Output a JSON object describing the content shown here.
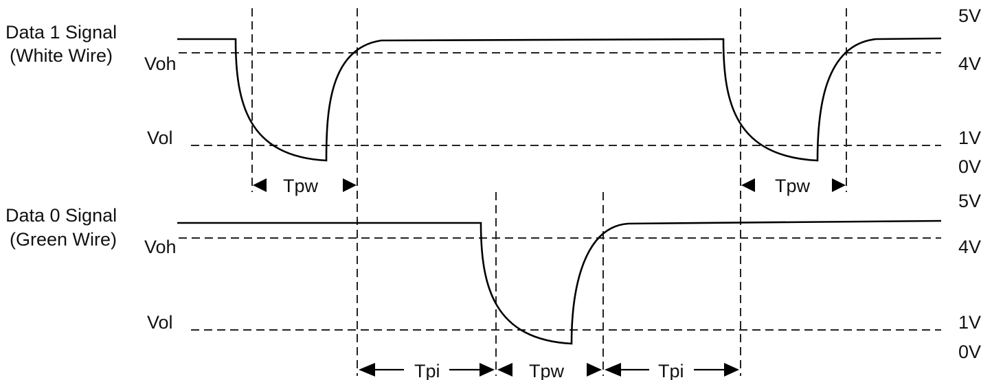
{
  "signals": [
    {
      "title_line1": "Data 1 Signal",
      "title_line2": "(White Wire)",
      "voh_label": "Voh",
      "vol_label": "Vol"
    },
    {
      "title_line1": "Data 0 Signal",
      "title_line2": "(Green Wire)",
      "voh_label": "Voh",
      "vol_label": "Vol"
    }
  ],
  "voltage_scale": [
    {
      "v5": "5V",
      "v4": "4V",
      "v1": "1V",
      "v0": "0V"
    },
    {
      "v5": "5V",
      "v4": "4V",
      "v1": "1V",
      "v0": "0V"
    }
  ],
  "timing": {
    "data1_pulse_1": "Tpw",
    "data1_pulse_2": "Tpw",
    "interval_1": "Tpi",
    "data0_pulse": "Tpw",
    "interval_2": "Tpi"
  }
}
